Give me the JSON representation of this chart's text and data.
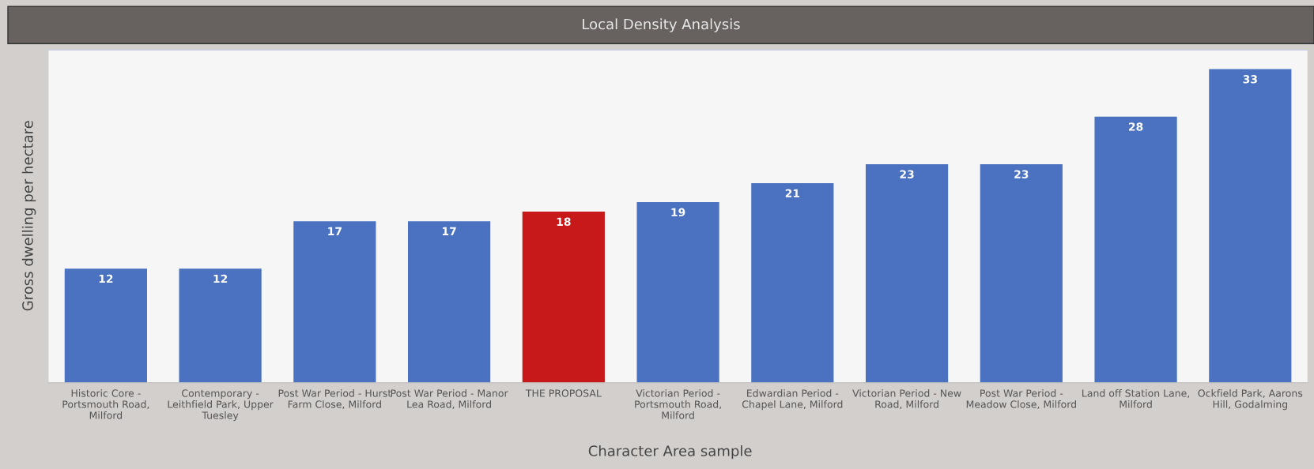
{
  "chart_data": {
    "type": "bar",
    "title": "Local Density Analysis",
    "xlabel": "Character Area sample",
    "ylabel": "Gross dwelling per hectare",
    "categories": [
      "Historic Core -\nPortsmouth Road,\nMilford",
      "Contemporary -\nLeithfield Park, Upper\nTuesley",
      "Post War Period - Hurst\nFarm Close, Milford",
      "Post War Period - Manor\nLea Road, Milford",
      "THE PROPOSAL",
      "Victorian Period -\nPortsmouth Road,\nMilford",
      "Edwardian Period -\nChapel Lane, Milford",
      "Victorian Period - New\nRoad, Milford",
      "Post War Period -\nMeadow Close, Milford",
      "Land off Station Lane,\nMilford",
      "Ockfield Park, Aarons\nHill, Godalming"
    ],
    "values": [
      12,
      12,
      17,
      17,
      18,
      19,
      21,
      23,
      23,
      28,
      33
    ],
    "colors": [
      "#4a72c0",
      "#4a72c0",
      "#4a72c0",
      "#4a72c0",
      "#c8191a",
      "#4a72c0",
      "#4a72c0",
      "#4a72c0",
      "#4a72c0",
      "#4a72c0",
      "#4a72c0"
    ],
    "ylim": [
      0,
      35
    ],
    "data_labels": true,
    "tick_labels": "x",
    "grid": false,
    "legend": false
  }
}
